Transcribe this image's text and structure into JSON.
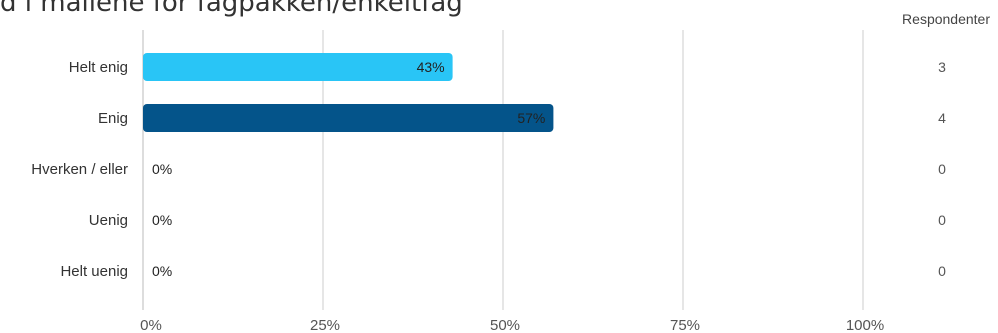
{
  "title": "d i mailene for fagpakken/enkeltfag",
  "chart_data": {
    "type": "bar",
    "orientation": "horizontal",
    "categories": [
      "Helt enig",
      "Enig",
      "Hverken / eller",
      "Uenig",
      "Helt uenig"
    ],
    "values": [
      43,
      57,
      0,
      0,
      0
    ],
    "value_labels": [
      "43%",
      "57%",
      "0%",
      "0%",
      "0%"
    ],
    "respondents_header": "Respondenter",
    "respondents": [
      "3",
      "4",
      "0",
      "0",
      "0"
    ],
    "xlim": [
      0,
      100
    ],
    "x_ticks": [
      0,
      25,
      50,
      75,
      100
    ],
    "x_tick_labels": [
      "0%",
      "25%",
      "50%",
      "75%",
      "100%"
    ],
    "colors": [
      "#29c5f6",
      "#04548a",
      "#29c5f6",
      "#29c5f6",
      "#29c5f6"
    ],
    "grid": true
  }
}
